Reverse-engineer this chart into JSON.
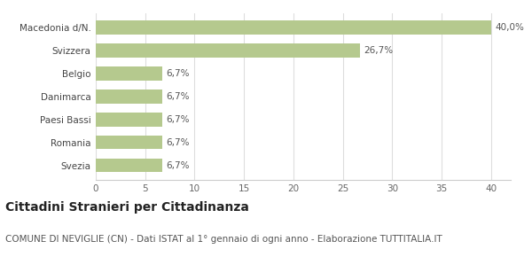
{
  "categories": [
    "Svezia",
    "Romania",
    "Paesi Bassi",
    "Danimarca",
    "Belgio",
    "Svizzera",
    "Macedonia d/N."
  ],
  "values": [
    6.7,
    6.7,
    6.7,
    6.7,
    6.7,
    26.7,
    40.0
  ],
  "labels": [
    "6,7%",
    "6,7%",
    "6,7%",
    "6,7%",
    "6,7%",
    "26,7%",
    "40,0%"
  ],
  "bar_color": "#b5c98e",
  "background_color": "#ffffff",
  "xlim": [
    0,
    42
  ],
  "xticks": [
    0,
    5,
    10,
    15,
    20,
    25,
    30,
    35,
    40
  ],
  "title": "Cittadini Stranieri per Cittadinanza",
  "subtitle": "COMUNE DI NEVIGLIE (CN) - Dati ISTAT al 1° gennaio di ogni anno - Elaborazione TUTTITALIA.IT",
  "title_fontsize": 10,
  "subtitle_fontsize": 7.5,
  "label_fontsize": 7.5,
  "tick_fontsize": 7.5
}
